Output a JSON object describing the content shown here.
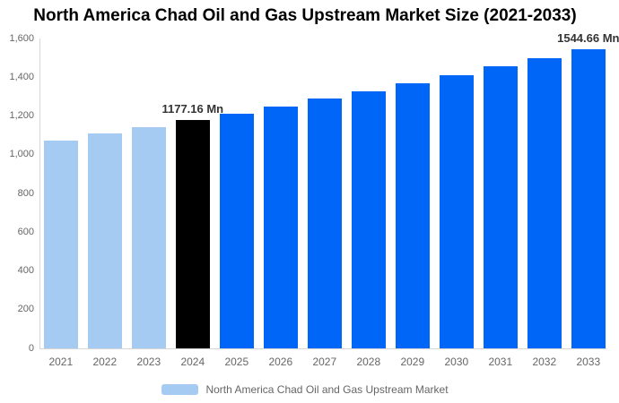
{
  "title": "North America Chad Oil and Gas Upstream Market Size (2021-2033)",
  "colors": {
    "historical_bar": "#A6CBF3",
    "current_year_bar": "#000000",
    "forecast_bar": "#0066F7",
    "axis_line": "#D6D6D6",
    "axis_text": "#666666",
    "data_label_text": "#333333",
    "title_text": "#000000",
    "background": "#FFFFFF"
  },
  "chart_data": {
    "type": "bar",
    "title": "North America Chad Oil and Gas Upstream Market Size (2021-2033)",
    "xlabel": "",
    "ylabel": "",
    "categories": [
      "2021",
      "2022",
      "2023",
      "2024",
      "2025",
      "2026",
      "2027",
      "2028",
      "2029",
      "2030",
      "2031",
      "2032",
      "2033"
    ],
    "values": [
      1075.1,
      1108.1,
      1142.1,
      1177.16,
      1213.3,
      1250.5,
      1288.9,
      1328.4,
      1369.2,
      1411.2,
      1454.5,
      1499.1,
      1544.66
    ],
    "unit": "Mn",
    "bar_colors": [
      "#A6CBF3",
      "#A6CBF3",
      "#A6CBF3",
      "#000000",
      "#0066F7",
      "#0066F7",
      "#0066F7",
      "#0066F7",
      "#0066F7",
      "#0066F7",
      "#0066F7",
      "#0066F7",
      "#0066F7"
    ],
    "data_labels": [
      {
        "index": 3,
        "text": "1177.16 Mn"
      },
      {
        "index": 12,
        "text": "1544.66 Mn"
      }
    ],
    "ylim": [
      0,
      1600
    ],
    "ytick_step": 200,
    "ytick_labels": [
      "0",
      "200",
      "400",
      "600",
      "800",
      "1,000",
      "1,200",
      "1,400",
      "1,600"
    ],
    "grid": "off",
    "legend_position": "bottom",
    "legend": {
      "label": "North America Chad Oil and Gas Upstream Market",
      "swatch_color": "#A6CBF3"
    }
  }
}
